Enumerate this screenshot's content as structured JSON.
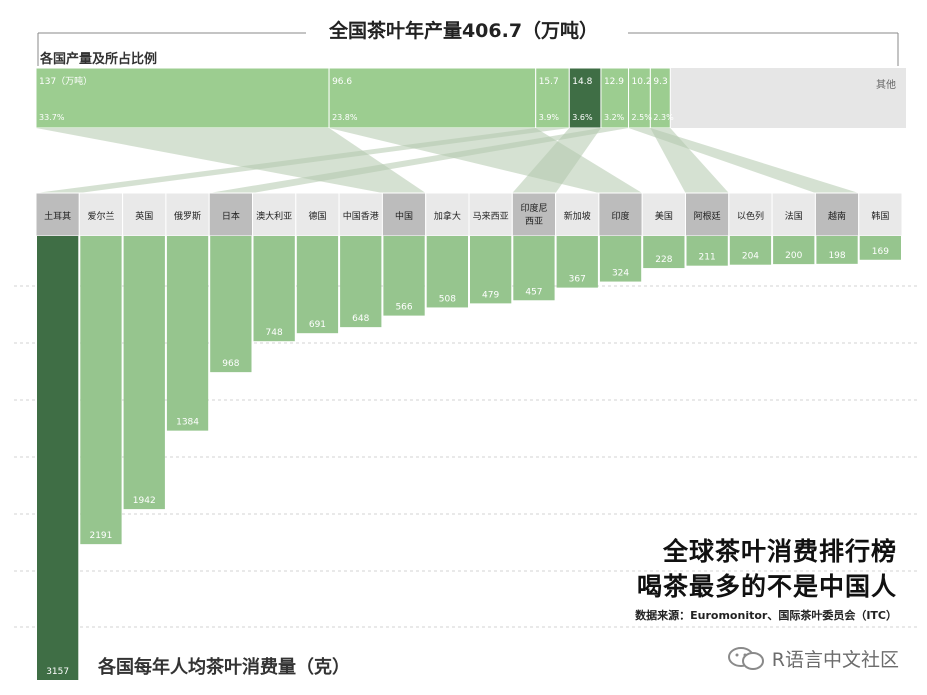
{
  "header": {
    "title": "全国茶叶年产量406.7（万吨）",
    "subtitle": "各国产量及所占比例"
  },
  "production": {
    "unit_label": "137（万吨）",
    "other_label": "其他",
    "segments": [
      {
        "value_label": "137（万吨）",
        "pct_label": "33.7%"
      },
      {
        "value_label": "96.6",
        "pct_label": "23.8%"
      },
      {
        "value_label": "15.7",
        "pct_label": "3.9%"
      },
      {
        "value_label": "14.8",
        "pct_label": "3.6%"
      },
      {
        "value_label": "12.9",
        "pct_label": "3.2%"
      },
      {
        "value_label": "10.2",
        "pct_label": "2.5%"
      },
      {
        "value_label": "9.3",
        "pct_label": "2.3%"
      },
      {
        "value_label": "其他",
        "pct_label": ""
      }
    ]
  },
  "chart_data": {
    "type": "bar",
    "orientation": "downward",
    "title": "各国每年人均茶叶消费量（克）",
    "categories": [
      "土耳其",
      "爱尔兰",
      "英国",
      "俄罗斯",
      "日本",
      "澳大利亚",
      "德国",
      "中国香港",
      "中国",
      "加拿大",
      "马来西亚",
      "印度尼西亚",
      "新加坡",
      "印度",
      "美国",
      "阿根廷",
      "以色列",
      "法国",
      "越南",
      "韩国"
    ],
    "values": [
      3157,
      2191,
      1942,
      1384,
      968,
      748,
      691,
      648,
      566,
      508,
      479,
      457,
      367,
      324,
      228,
      211,
      204,
      200,
      198,
      169
    ],
    "grid": true,
    "producers_highlighted": [
      "土耳其",
      "日本",
      "中国",
      "印度尼西亚",
      "印度",
      "阿根廷",
      "越南"
    ],
    "production_shares": {
      "values_10k_tons": [
        137,
        96.6,
        15.7,
        14.8,
        12.9,
        10.2,
        9.3
      ],
      "percent": [
        33.7,
        23.8,
        3.9,
        3.6,
        3.2,
        2.5,
        2.3
      ],
      "total_10k_tons": 406.7
    },
    "colors": {
      "light_bar": "#96c58e",
      "dark_bar": "#3f6e45",
      "light_header": "#e9e9e9",
      "dark_header": "#bcbcbc",
      "top_bar": "#9ccd90",
      "top_other": "#e6e6e6",
      "top_dark": "#3f6e45",
      "connector": "#b3c9ad"
    }
  },
  "footer": {
    "right_title_line1": "全球茶叶消费排行榜",
    "right_title_line2": "喝茶最多的不是中国人",
    "source": "数据来源：Euromonitor、国际茶叶委员会（ITC）",
    "watermark": "R语言中文社区"
  }
}
